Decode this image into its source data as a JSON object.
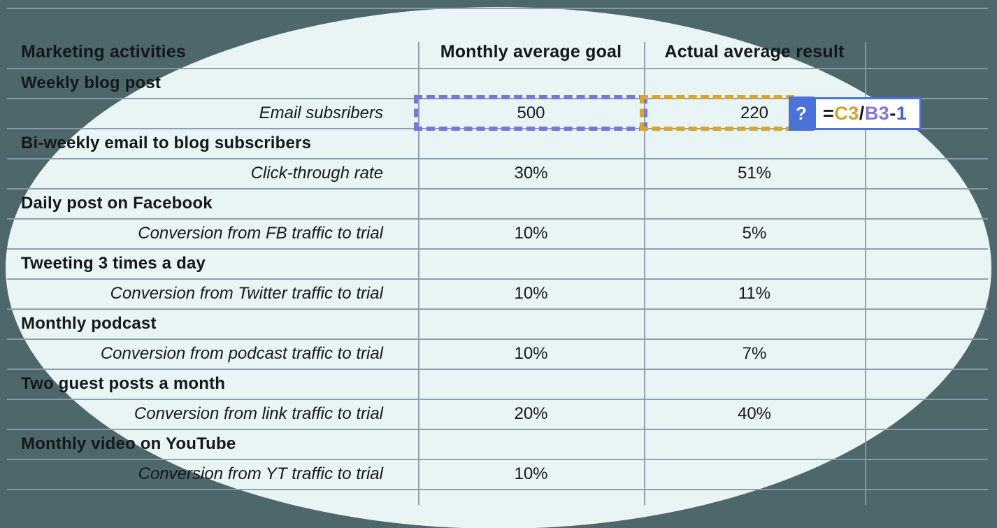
{
  "colors": {
    "background": "#4d676b",
    "ellipse": "#e9f5f5",
    "gridline": "#8c9aaa",
    "text": "#14181c",
    "goal_selection_dash": "#7b74dc",
    "actual_selection_dash": "#d9a62b",
    "formula_accent_blue": "#4a72d8"
  },
  "table": {
    "columns": [
      "Marketing activities",
      "Monthly average goal",
      "Actual average result"
    ],
    "rows": [
      {
        "label": "Weekly blog post",
        "style": "activity",
        "goal": "",
        "actual": ""
      },
      {
        "label": "Email subsribers",
        "style": "metric",
        "goal": "500",
        "actual": "220"
      },
      {
        "label": "Bi-weekly email to blog subscribers",
        "style": "activity",
        "goal": "",
        "actual": ""
      },
      {
        "label": "Click-through rate",
        "style": "metric",
        "goal": "30%",
        "actual": "51%"
      },
      {
        "label": "Daily post on Facebook",
        "style": "activity",
        "goal": "",
        "actual": ""
      },
      {
        "label": "Conversion from FB traffic to trial",
        "style": "metric",
        "goal": "10%",
        "actual": "5%"
      },
      {
        "label": "Tweeting 3 times a day",
        "style": "activity",
        "goal": "",
        "actual": ""
      },
      {
        "label": "Conversion from Twitter traffic to trial",
        "style": "metric",
        "goal": "10%",
        "actual": "11%"
      },
      {
        "label": "Monthly podcast",
        "style": "activity",
        "goal": "",
        "actual": ""
      },
      {
        "label": "Conversion from podcast traffic to trial",
        "style": "metric",
        "goal": "10%",
        "actual": "7%"
      },
      {
        "label": "Two guest posts a month",
        "style": "activity",
        "goal": "",
        "actual": ""
      },
      {
        "label": "Conversion from link traffic to trial",
        "style": "metric",
        "goal": "20%",
        "actual": "40%"
      },
      {
        "label": "Monthly video on YouTube",
        "style": "activity",
        "goal": "",
        "actual": ""
      },
      {
        "label": "Conversion from YT traffic to trial",
        "style": "metric",
        "goal": "10%",
        "actual": ""
      }
    ]
  },
  "formula": {
    "badge": "?",
    "tokens": [
      {
        "text": "=",
        "color": "#14181c"
      },
      {
        "text": "C3",
        "color": "#d4a02c"
      },
      {
        "text": "/",
        "color": "#14181c"
      },
      {
        "text": "B3",
        "color": "#7c7ae0"
      },
      {
        "text": "-",
        "color": "#14181c"
      },
      {
        "text": "1",
        "color": "#3f63d6"
      }
    ]
  }
}
